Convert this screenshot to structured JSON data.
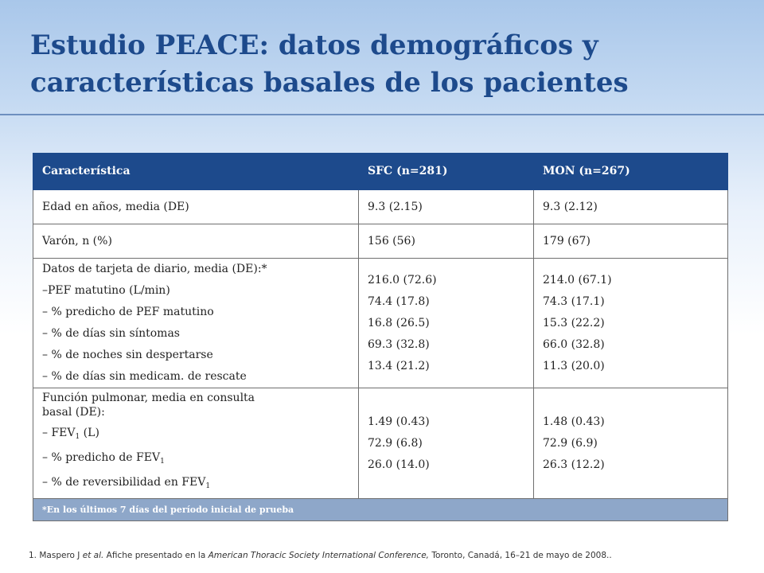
{
  "slide": {
    "title_line1": "Estudio PEACE: datos demográficos y",
    "title_line2": "características basales de los pacientes"
  },
  "table": {
    "headers": [
      "Característica",
      "SFC (n=281)",
      "MON (n=267)"
    ],
    "row_age": [
      "Edad en años, media (DE)",
      "9.3 (2.15)",
      "9.3 (2.12)"
    ],
    "row_male": [
      "Varón, n (%)",
      "156 (56)",
      "179 (67)"
    ],
    "diary": {
      "label": "Datos de tarjeta de diario, media (DE):*",
      "items": [
        "–PEF matutino (L/min)",
        "– % predicho de PEF matutino",
        "– % de días sin síntomas",
        "– % de noches sin despertarse",
        "– % de días sin medicam. de rescate"
      ],
      "sfc": [
        "216.0 (72.6)",
        "74.4 (17.8)",
        "16.8 (26.5)",
        "69.3 (32.8)",
        "13.4 (21.2)"
      ],
      "mon": [
        "214.0 (67.1)",
        "74.3 (17.1)",
        "15.3 (22.2)",
        "66.0 (32.8)",
        "11.3 (20.0)"
      ]
    },
    "lung": {
      "label_line1": "Función pulmonar, media en  consulta",
      "label_line2": "basal  (DE):",
      "item1": "– FEV",
      "item1_unit": " (L)",
      "item2": "– % predicho  de FEV",
      "item3": "– % de reversibilidad en FEV",
      "subscript": "1",
      "sfc": [
        "1.49 (0.43)",
        "72.9 (6.8)",
        "26.0 (14.0)"
      ],
      "mon": [
        "1.48 (0.43)",
        "72.9 (6.9)",
        "26.3 (12.2)"
      ]
    },
    "footnote": "*En los últimos 7 días del período inicial de prueba"
  },
  "citation": {
    "part1": "1. Maspero J ",
    "part2": "et al.",
    "part3": " Afiche presentado en la ",
    "part4": "American Thoracic Society International Conference,",
    "part5": " Toronto, Canadá, 16–21 de mayo de 2008.."
  },
  "colors": {
    "title": "#1d4a8c",
    "header_bg": "#1d4a8c",
    "footnote_bg": "#8ea7c9"
  }
}
